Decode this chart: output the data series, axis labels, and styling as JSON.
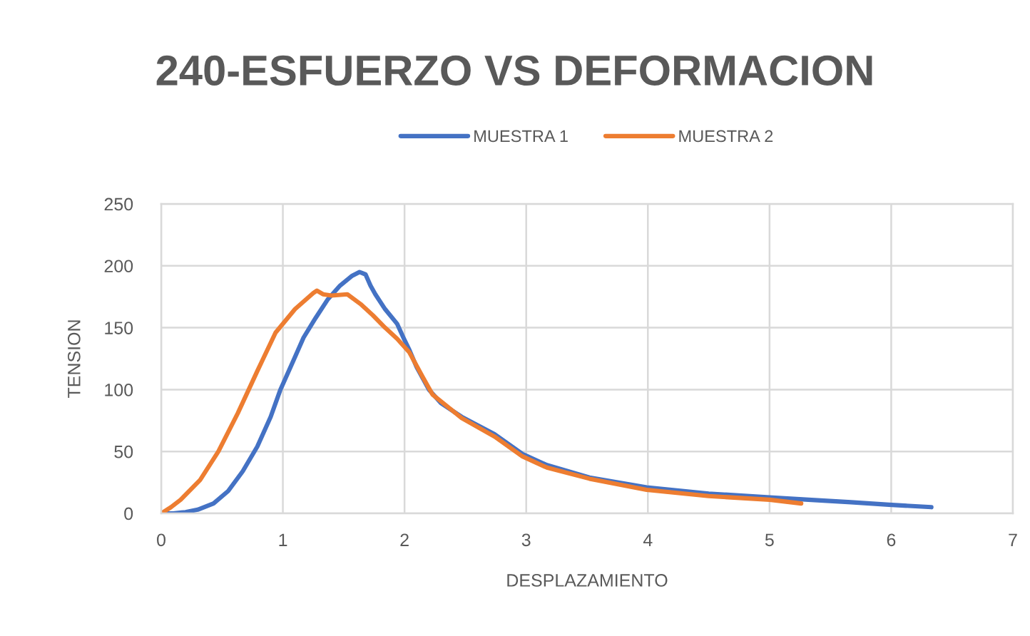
{
  "chart_data": {
    "type": "line",
    "title": "240-ESFUERZO VS DEFORMACION",
    "xlabel": "DESPLAZAMIENTO",
    "ylabel": "TENSION",
    "xlim": [
      0,
      7
    ],
    "xticks": [
      0,
      1,
      2,
      3,
      4,
      5,
      6,
      7
    ],
    "ylim": [
      0,
      250
    ],
    "yticks": [
      0,
      50,
      100,
      150,
      200,
      250
    ],
    "grid": true,
    "legend": "top",
    "series": [
      {
        "name": "MUESTRA 1",
        "color": "#4472c4",
        "x": [
          0,
          0.1,
          0.2,
          0.3,
          0.43,
          0.55,
          0.67,
          0.79,
          0.9,
          0.98,
          1.08,
          1.17,
          1.27,
          1.37,
          1.47,
          1.57,
          1.63,
          1.68,
          1.72,
          1.76,
          1.84,
          1.94,
          2.0,
          2.04,
          2.1,
          2.2,
          2.3,
          2.47,
          2.74,
          2.97,
          3.17,
          3.52,
          3.99,
          4.5,
          5.0,
          5.32,
          5.67,
          5.98,
          6.33
        ],
        "values": [
          0,
          0,
          1,
          3,
          8,
          18,
          34,
          54,
          78,
          100,
          122,
          142,
          158,
          173,
          184,
          192,
          195,
          193,
          184,
          177,
          165,
          153,
          140,
          132,
          118,
          100,
          89,
          78,
          64,
          48,
          39,
          29,
          21,
          16,
          13,
          11,
          9,
          7,
          5
        ]
      },
      {
        "name": "MUESTRA 2",
        "color": "#ed7d31",
        "x": [
          0,
          0.08,
          0.16,
          0.32,
          0.47,
          0.63,
          0.79,
          0.94,
          1.1,
          1.25,
          1.28,
          1.33,
          1.4,
          1.53,
          1.64,
          1.74,
          1.84,
          1.94,
          2.04,
          2.15,
          2.23,
          2.47,
          2.74,
          2.97,
          3.17,
          3.52,
          3.99,
          4.5,
          5.0,
          5.26
        ],
        "values": [
          0,
          5,
          11,
          27,
          50,
          81,
          115,
          146,
          165,
          178,
          180,
          177,
          176,
          177,
          169,
          160,
          150,
          141,
          130,
          110,
          96,
          77,
          62,
          46,
          37,
          28,
          19,
          14,
          11,
          8
        ]
      }
    ]
  }
}
